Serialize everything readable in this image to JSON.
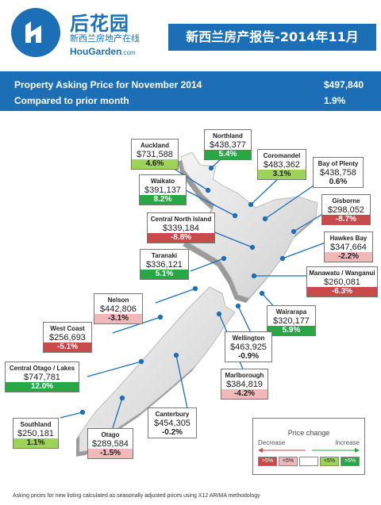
{
  "header": {
    "logo_cn": "后花园",
    "logo_cn_sub": "新西兰房地产在线",
    "logo_en": "HouGarden",
    "logo_en_suffix": ".com",
    "title": "新西兰房产报告-2014年11月"
  },
  "summary": {
    "row1_label": "Property Asking Price for  November 2014",
    "row1_value": "$497,840",
    "row2_label": "Compared to prior month",
    "row2_value": "1.9%"
  },
  "regions": [
    {
      "name": "Auckland",
      "price": "$731,588",
      "change": "4.6%",
      "color": "#9ed35b"
    },
    {
      "name": "Northland",
      "price": "$438,377",
      "change": "5.4%",
      "color": "#29a745"
    },
    {
      "name": "Coromandel",
      "price": "$483,362",
      "change": "3.1%",
      "color": "#9ed35b"
    },
    {
      "name": "Bay of Plenty",
      "price": "$438,758",
      "change": "0.6%",
      "color": "#ffffff"
    },
    {
      "name": "Waikato",
      "price": "$391,137",
      "change": "8.2%",
      "color": "#29a745"
    },
    {
      "name": "Gisborne",
      "price": "$298,052",
      "change": "-8.7%",
      "color": "#c94a4a"
    },
    {
      "name": "Central North Island",
      "price": "$339,184",
      "change": "-8.8%",
      "color": "#c94a4a"
    },
    {
      "name": "Hawkes Bay",
      "price": "$347,664",
      "change": "-2.2%",
      "color": "#f0b8b8"
    },
    {
      "name": "Taranaki",
      "price": "$336,121",
      "change": "5.1%",
      "color": "#29a745"
    },
    {
      "name": "Manawatu / Wanganui",
      "price": "$260,081",
      "change": "-6.3%",
      "color": "#c94a4a"
    },
    {
      "name": "Nelson",
      "price": "$442,806",
      "change": "-3.1%",
      "color": "#f0b8b8"
    },
    {
      "name": "Wairarapa",
      "price": "$320,177",
      "change": "5.9%",
      "color": "#29a745"
    },
    {
      "name": "West Coast",
      "price": "$256,693",
      "change": "-5.1%",
      "color": "#c94a4a"
    },
    {
      "name": "Wellington",
      "price": "$463,925",
      "change": "-0.9%",
      "color": "#ffffff"
    },
    {
      "name": "Central Otago / Lakes",
      "price": "$747,781",
      "change": "12.0%",
      "color": "#29a745"
    },
    {
      "name": "Marlborough",
      "price": "$384,819",
      "change": "-4.2%",
      "color": "#f0b8b8"
    },
    {
      "name": "Canterbury",
      "price": "$454,305",
      "change": "-0.2%",
      "color": "#ffffff"
    },
    {
      "name": "Southland",
      "price": "$250,181",
      "change": "1.1%",
      "color": "#9ed35b"
    },
    {
      "name": "Otago",
      "price": "$289,584",
      "change": "-1.5%",
      "color": "#f0b8b8"
    }
  ],
  "legend": {
    "title": "Price change",
    "decrease": "Decrease",
    "increase": "Increase",
    "swatches": [
      {
        "label": ">5%",
        "color": "#c94a4a"
      },
      {
        "label": "<5%",
        "color": "#f0b8b8"
      },
      {
        "label": "",
        "color": "#ffffff"
      },
      {
        "label": "<5%",
        "color": "#9ed35b"
      },
      {
        "label": ">5%",
        "color": "#29a745"
      }
    ]
  },
  "footnote": "Asking prices for new listing calculated as seasonally adjusted prices using X12 ARIMA methodology"
}
